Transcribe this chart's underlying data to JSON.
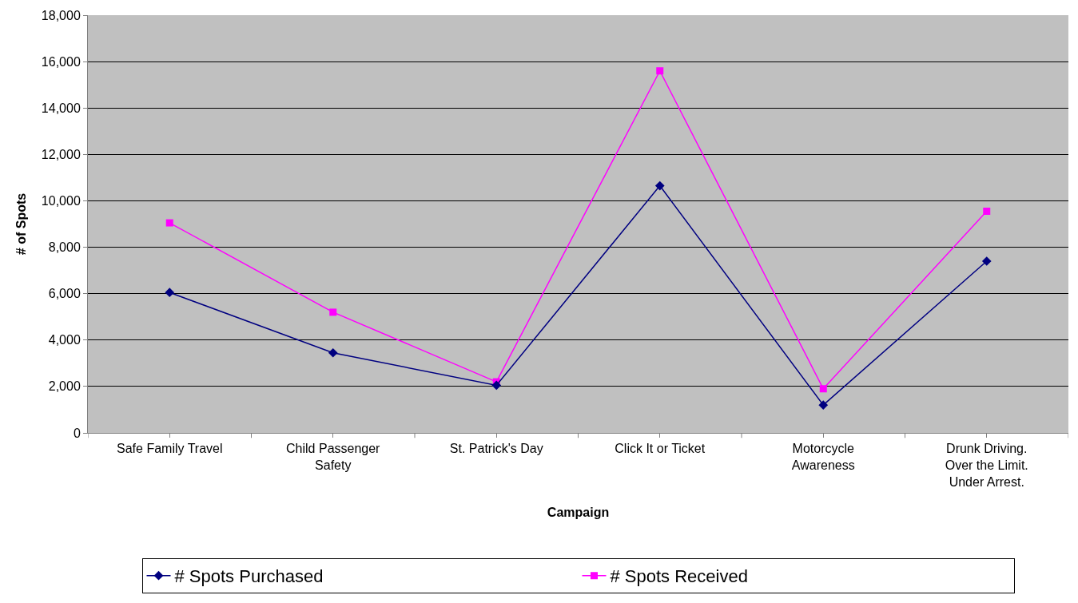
{
  "chart_data": {
    "type": "line",
    "xlabel": "Campaign",
    "ylabel": "# of Spots",
    "categories": [
      "Safe Family Travel",
      "Child Passenger Safety",
      "St. Patrick's Day",
      "Click It or Ticket",
      "Motorcycle Awareness",
      "Drunk Driving. Over the Limit. Under Arrest."
    ],
    "series": [
      {
        "name": "# Spots Purchased",
        "color": "#000080",
        "marker": "diamond",
        "values": [
          6050,
          3450,
          2050,
          10650,
          1200,
          7400
        ]
      },
      {
        "name": "# Spots Received",
        "color": "#ff00ff",
        "marker": "square",
        "values": [
          9050,
          5200,
          2200,
          15600,
          1900,
          9550
        ]
      }
    ],
    "ylim": [
      0,
      18000
    ],
    "yticks": [
      {
        "value": 0,
        "label": "0"
      },
      {
        "value": 2000,
        "label": "2,000"
      },
      {
        "value": 4000,
        "label": "4,000"
      },
      {
        "value": 6000,
        "label": "6,000"
      },
      {
        "value": 8000,
        "label": "8,000"
      },
      {
        "value": 10000,
        "label": "10,000"
      },
      {
        "value": 12000,
        "label": "12,000"
      },
      {
        "value": 14000,
        "label": "14,000"
      },
      {
        "value": 16000,
        "label": "16,000"
      },
      {
        "value": 18000,
        "label": "18,000"
      }
    ],
    "grid": "y",
    "legend": "bottom",
    "line_style": "solid"
  }
}
